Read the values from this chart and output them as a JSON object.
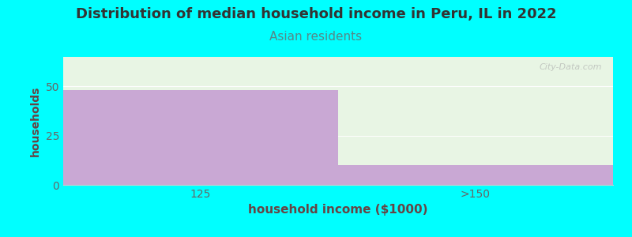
{
  "title": "Distribution of median household income in Peru, IL in 2022",
  "subtitle": "Asian residents",
  "xlabel": "household income ($1000)",
  "ylabel": "households",
  "categories": [
    "125",
    ">150"
  ],
  "values": [
    48,
    10
  ],
  "ylim": [
    0,
    65
  ],
  "yticks": [
    0,
    25,
    50
  ],
  "bar_color": "#c9a8d4",
  "bg_color": "#00ffff",
  "plot_bg_color": "#e8f5e4",
  "title_fontsize": 13,
  "title_color": "#333333",
  "subtitle_fontsize": 11,
  "subtitle_color": "#558888",
  "axis_label_color": "#664444",
  "tick_color": "#666666",
  "watermark": "City-Data.com",
  "bar_width": 1.0
}
